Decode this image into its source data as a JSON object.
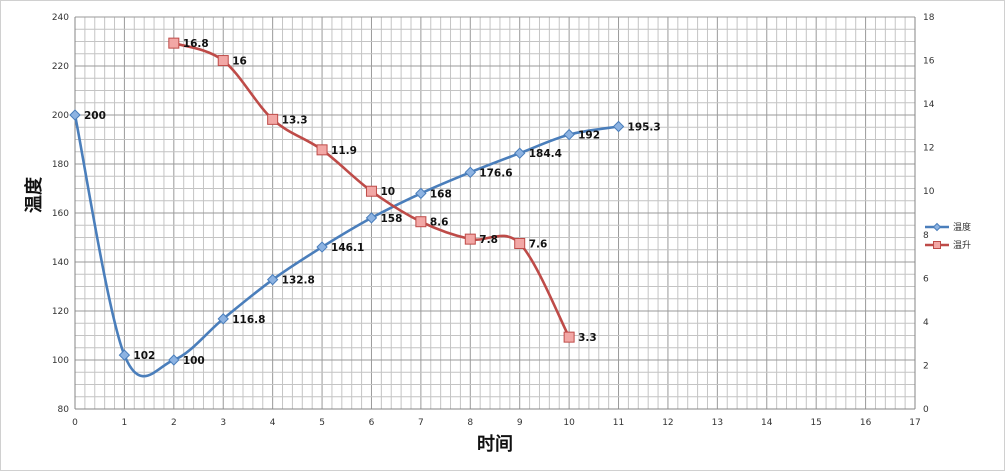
{
  "chart_data": {
    "type": "line",
    "xlabel": "时间",
    "ylabel": "温度",
    "y2label": "",
    "x_ticks": [
      0,
      1,
      2,
      3,
      4,
      5,
      6,
      7,
      8,
      9,
      10,
      11,
      12,
      13,
      14,
      15,
      16,
      17
    ],
    "xlim": [
      0,
      17
    ],
    "ylim": [
      80,
      240
    ],
    "y_ticks": [
      80,
      100,
      120,
      140,
      160,
      180,
      200,
      220,
      240
    ],
    "y2lim": [
      0,
      18
    ],
    "y2_ticks": [
      0,
      2,
      4,
      6,
      8,
      10,
      12,
      14,
      16,
      18
    ],
    "grid": true,
    "legend_position": "right",
    "series": [
      {
        "name": "温度",
        "axis": "left",
        "color": "#4a7ebb",
        "marker": "diamond",
        "x": [
          0,
          1,
          2,
          3,
          4,
          5,
          6,
          7,
          8,
          9,
          10,
          11
        ],
        "values": [
          200,
          102,
          100,
          116.8,
          132.8,
          146.1,
          158,
          168,
          176.6,
          184.4,
          192,
          195.3
        ],
        "labels": [
          "200",
          "102",
          "100",
          "116.8",
          "132.8",
          "146.1",
          "158",
          "168",
          "176.6",
          "184.4",
          "192",
          "195.3"
        ]
      },
      {
        "name": "温升",
        "axis": "right",
        "color": "#be4b48",
        "marker": "square",
        "x": [
          2,
          3,
          4,
          5,
          6,
          7,
          8,
          9,
          10
        ],
        "values": [
          16.8,
          16,
          13.3,
          11.9,
          10,
          8.6,
          7.8,
          7.6,
          3.3
        ],
        "labels": [
          "16.8",
          "16",
          "13.3",
          "11.9",
          "10",
          "8.6",
          "7.8",
          "7.6",
          "3.3"
        ]
      }
    ]
  }
}
